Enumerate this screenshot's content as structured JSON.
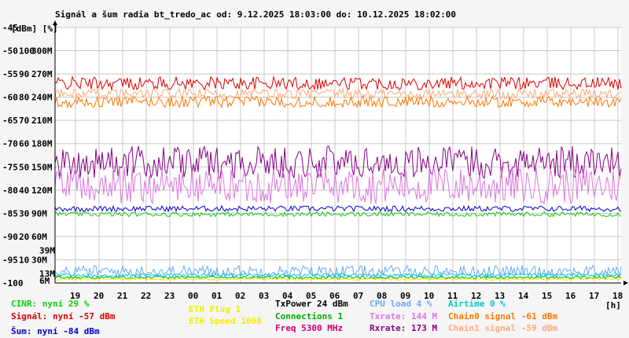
{
  "chart_data": {
    "type": "line",
    "title": "Signál a šum radia bt_tredo_ac od: 9.12.2025 18:03:00 do: 10.12.2025 18:02:00",
    "units_label": "[dBm] [%]",
    "x_unit_label": "[h]",
    "x_hours": [
      "19",
      "20",
      "21",
      "22",
      "23",
      "00",
      "01",
      "02",
      "03",
      "04",
      "05",
      "06",
      "07",
      "08",
      "09",
      "10",
      "11",
      "12",
      "13",
      "14",
      "15",
      "16",
      "17",
      "18"
    ],
    "y_dbm": {
      "min": -100,
      "max": -45,
      "ticks": [
        -45,
        -50,
        -55,
        -60,
        -65,
        -70,
        -75,
        -80,
        -85,
        -90,
        -95,
        -100
      ]
    },
    "y_percent": {
      "ticks": [
        "100",
        "90",
        "80",
        "70",
        "60",
        "50",
        "40",
        "30",
        "20",
        "10"
      ]
    },
    "y_rate": {
      "ticks": [
        "300M",
        "270M",
        "240M",
        "210M",
        "180M",
        "150M",
        "120M",
        "90M",
        "60M",
        "30M"
      ]
    },
    "side_labels": [
      {
        "text": "39M",
        "color": "#dd77dd",
        "dbm": -93
      },
      {
        "text": "13M",
        "color": "#5599ff",
        "dbm": -98
      },
      {
        "text": "6M",
        "color": "#cc0077",
        "dbm": -99.5
      }
    ],
    "grid": true,
    "series": [
      {
        "name": "Signál",
        "color": "#dd0000",
        "level_dbm": -57,
        "spread": 1.4
      },
      {
        "name": "Chain1 signal",
        "color": "#ffaa77",
        "level_dbm": -59.3,
        "spread": 1.1
      },
      {
        "name": "Chain0 signal",
        "color": "#ff7700",
        "level_dbm": -61,
        "spread": 1.2
      },
      {
        "name": "Rxrate",
        "color": "#880088",
        "level_dbm": -74,
        "spread": 3.5
      },
      {
        "name": "Txrate",
        "color": "#dd77dd",
        "level_dbm": -79,
        "spread": 4
      },
      {
        "name": "Šum",
        "color": "#0000cc",
        "level_dbm": -84,
        "spread": 0.6
      },
      {
        "name": "CINR",
        "color": "#11cc11",
        "level_dbm": -85.2,
        "spread": 0.5
      },
      {
        "name": "CPU load",
        "color": "#66aaff",
        "level_dbm": -97.5,
        "spread": 1.3
      },
      {
        "name": "Connections",
        "color": "#00aa00",
        "level_dbm": -98.8,
        "spread": 0.3
      },
      {
        "name": "Airtime",
        "color": "#00cccc",
        "level_dbm": -98.3,
        "spread": 0.4
      },
      {
        "name": "ETH Speed",
        "color": "#eeee00",
        "level_dbm": -99.2,
        "spread": 0.2
      }
    ]
  },
  "legend": {
    "cinr": "CINR: nyní 29 %",
    "signal": "Signál: nyní -57 dBm",
    "noise": "Šum: nyní -84 dBm",
    "eth_plug": "ETH Plug 1",
    "eth_speed": "ETH Speed 1000",
    "txpower": "TxPower 24 dBm",
    "connections": "Connections 1",
    "freq": "Freq 5300 MHz",
    "cpu": "CPU load 4 %",
    "txrate": "Txrate: 144 M",
    "rxrate": "Rxrate: 173 M",
    "airtime": "Airtime 0 %",
    "chain0": "Chain0 signal -61 dBm",
    "chain1": "Chain1 signal -59 dBm"
  },
  "colors": {
    "cinr": "#11cc11",
    "signal": "#dd0000",
    "noise": "#0000cc",
    "eth_plug": "#eeee00",
    "eth_speed": "#eeee00",
    "txpower": "#000000",
    "connections": "#00aa00",
    "freq": "#cc0077",
    "cpu": "#66aaff",
    "txrate": "#dd77dd",
    "rxrate": "#880088",
    "airtime": "#00cccc",
    "chain0": "#ff7700",
    "chain1": "#ffaa77"
  }
}
